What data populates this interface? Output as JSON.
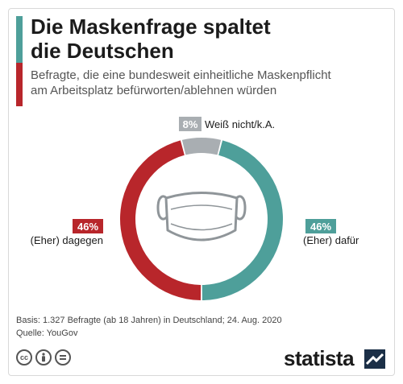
{
  "title_line1": "Die Maskenfrage spaltet",
  "title_line2": "die Deutschen",
  "subtitle_line1": "Befragte, die eine bundesweit einheitliche Maskenpflicht",
  "subtitle_line2": "am Arbeitsplatz befürworten/ablehnen würden",
  "chart_data": {
    "type": "pie",
    "donut": true,
    "slices": [
      {
        "label": "(Eher) dafür",
        "value": 46,
        "display": "46%",
        "color": "#4e9f9a"
      },
      {
        "label": "(Eher) dagegen",
        "value": 46,
        "display": "46%",
        "color": "#b8262b"
      },
      {
        "label": "Weiß nicht/k.A.",
        "value": 8,
        "display": "8%",
        "color": "#a9aeb2"
      }
    ],
    "center_icon": "face-mask-icon"
  },
  "footer": {
    "basis": "Basis: 1.327 Befragte (ab 18 Jahren) in Deutschland; 24. Aug. 2020",
    "source": "Quelle: YouGov"
  },
  "license_icons": [
    "cc-icon",
    "by-icon",
    "nd-icon"
  ],
  "brand": "statista"
}
